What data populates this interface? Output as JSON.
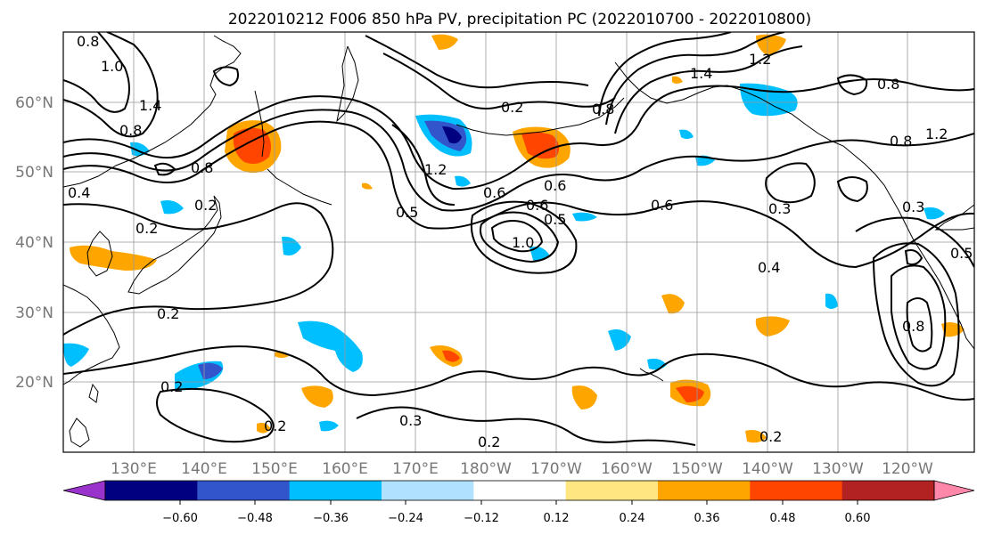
{
  "figure": {
    "title": "2022010212 F006 850 hPa PV, precipitation PC (2022010700 - 2022010800)"
  },
  "map": {
    "lat_labels": [
      "60°N",
      "50°N",
      "40°N",
      "30°N",
      "20°N"
    ],
    "lon_labels": [
      "130°E",
      "140°E",
      "150°E",
      "160°E",
      "170°E",
      "180°W",
      "170°W",
      "160°W",
      "150°W",
      "140°W",
      "130°W",
      "120°W"
    ],
    "contour_labels": [
      "0.8",
      "1.0",
      "1.4",
      "0.8",
      "0.4",
      "0.8",
      "0.2",
      "0.2",
      "0.2",
      "0.2",
      "0.2",
      "0.3",
      "0.2",
      "0.5",
      "0.6",
      "0.6",
      "0.5",
      "1.0",
      "0.6",
      "0.4",
      "0.3",
      "1.4",
      "0.2",
      "0.8",
      "1.2",
      "0.6",
      "0.8",
      "1.2",
      "0.3",
      "0.8",
      "0.5",
      "0.8",
      "0.2",
      "1.2"
    ],
    "colors": {
      "coast": "#000000",
      "grid": "#999999",
      "contour": "#000000"
    }
  },
  "colorbar": {
    "tick_labels": [
      "−0.60",
      "−0.48",
      "−0.36",
      "−0.24",
      "−0.12",
      "0.12",
      "0.24",
      "0.36",
      "0.48",
      "0.60"
    ],
    "bins": [
      {
        "color": "#9933cc"
      },
      {
        "color": "#000080"
      },
      {
        "color": "#3355cc"
      },
      {
        "color": "#00bfff"
      },
      {
        "color": "#b0e2ff"
      },
      {
        "color": "#ffffff"
      },
      {
        "color": "#ffe680"
      },
      {
        "color": "#ffa500"
      },
      {
        "color": "#ff4500"
      },
      {
        "color": "#b22222"
      },
      {
        "color": "#ff88aa"
      }
    ]
  }
}
